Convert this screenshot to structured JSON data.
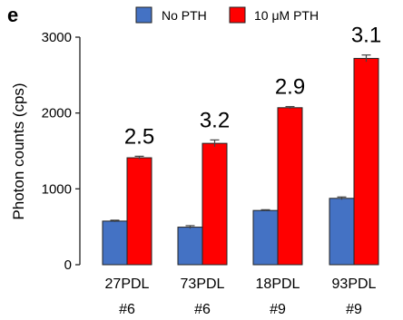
{
  "panel_label": "e",
  "colors": {
    "no_pth": "#4472c4",
    "pth": "#ff0000",
    "error_bar": "#444444"
  },
  "chart_data": {
    "type": "bar",
    "categories": [
      "27PDL",
      "73PDL",
      "18PDL",
      "93PDL"
    ],
    "category_sublabels": [
      "#6",
      "#6",
      "#9",
      "#9"
    ],
    "series": [
      {
        "name": "No PTH",
        "values": [
          575,
          495,
          715,
          875
        ],
        "errors": [
          12,
          20,
          10,
          18
        ]
      },
      {
        "name": "10 μM PTH",
        "values": [
          1410,
          1600,
          2070,
          2720
        ],
        "errors": [
          20,
          45,
          15,
          45
        ]
      }
    ],
    "fold_change_labels": [
      "2.5",
      "3.2",
      "2.9",
      "3.1"
    ],
    "ylabel": "Photon counts (cps)",
    "ylim": [
      0,
      3000
    ],
    "yticks": [
      0,
      1000,
      2000,
      3000
    ],
    "legend_position": "top",
    "grid": false
  }
}
